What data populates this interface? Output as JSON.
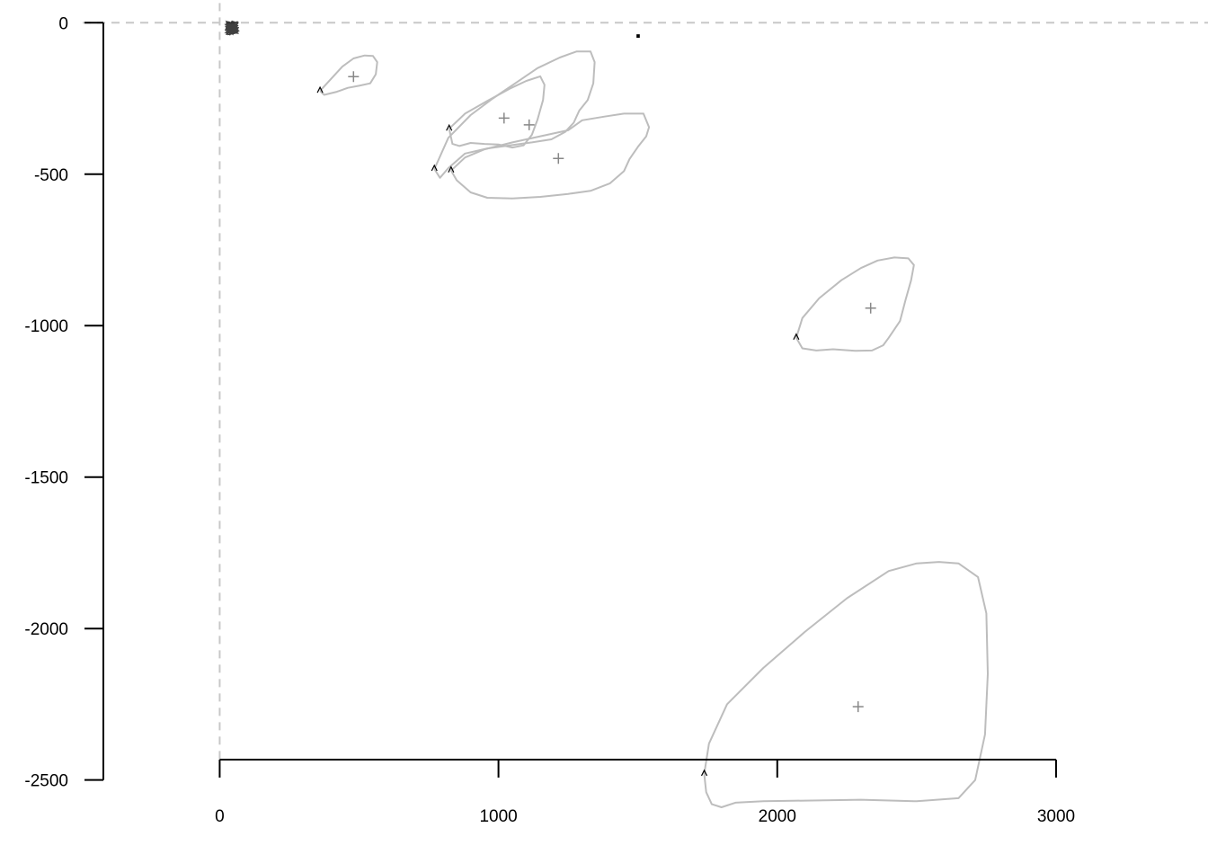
{
  "chart_data": {
    "type": "line",
    "title": ".",
    "xlabel": "",
    "ylabel": "",
    "xlim": [
      -788,
      3545
    ],
    "ylim": [
      -2774,
      75
    ],
    "x_ticks": [
      0,
      1000,
      2000,
      3000
    ],
    "x_tick_labels": [
      "0",
      "1000",
      "2000",
      "3000"
    ],
    "y_ticks": [
      0,
      -500,
      -1000,
      -1500,
      -2000,
      -2500
    ],
    "y_tick_labels": [
      "0",
      "-500",
      "-1000",
      "-1500",
      "-2000",
      "-2500"
    ],
    "reference_lines": {
      "x": 0,
      "y": 0,
      "style": "dashed"
    },
    "grid": false,
    "colors": {
      "trajectory": "#bdbdbd",
      "marker": "#888888",
      "start_marker": "#000000",
      "origin_cluster": "#000000",
      "axis": "#000000",
      "reference": "#c8c8c8"
    },
    "origin_cluster": {
      "x": [
        20,
        70
      ],
      "y": [
        -40,
        5
      ]
    },
    "series": [
      {
        "start": [
          360,
          -225
        ],
        "center": [
          480,
          -178
        ],
        "x": [
          360,
          400,
          440,
          480,
          520,
          550,
          565,
          560,
          540,
          500,
          460,
          420,
          375,
          360
        ],
        "y": [
          -225,
          -185,
          -145,
          -118,
          -108,
          -110,
          -130,
          -170,
          -200,
          -208,
          -215,
          -228,
          -238,
          -225
        ]
      },
      {
        "start": [
          823,
          -350
        ],
        "center": [
          1020,
          -315
        ],
        "x": [
          823,
          880,
          960,
          1040,
          1100,
          1150,
          1165,
          1160,
          1140,
          1120,
          1090,
          1050,
          1000,
          950,
          900,
          860,
          835,
          823
        ],
        "y": [
          -350,
          -300,
          -258,
          -218,
          -192,
          -177,
          -205,
          -255,
          -320,
          -370,
          -405,
          -412,
          -402,
          -400,
          -397,
          -407,
          -400,
          -350
        ]
      },
      {
        "start": [
          770,
          -483
        ],
        "center": [
          1110,
          -337
        ],
        "x": [
          770,
          820,
          900,
          980,
          1060,
          1140,
          1220,
          1280,
          1330,
          1345,
          1340,
          1320,
          1290,
          1270,
          1240,
          1190,
          1120,
          1040,
          960,
          880,
          820,
          790,
          770
        ],
        "y": [
          -483,
          -380,
          -305,
          -250,
          -200,
          -150,
          -115,
          -95,
          -95,
          -130,
          -200,
          -255,
          -290,
          -330,
          -360,
          -385,
          -395,
          -405,
          -415,
          -432,
          -480,
          -512,
          -483
        ]
      },
      {
        "start": [
          830,
          -488
        ],
        "center": [
          1215,
          -448
        ],
        "x": [
          830,
          880,
          950,
          1050,
          1150,
          1250,
          1300,
          1380,
          1450,
          1520,
          1540,
          1530,
          1500,
          1470,
          1450,
          1400,
          1330,
          1250,
          1150,
          1050,
          960,
          900,
          850,
          830
        ],
        "y": [
          -488,
          -445,
          -418,
          -395,
          -375,
          -355,
          -322,
          -310,
          -300,
          -300,
          -345,
          -375,
          -410,
          -450,
          -490,
          -530,
          -555,
          -565,
          -575,
          -580,
          -578,
          -560,
          -520,
          -488
        ]
      },
      {
        "start": [
          2068,
          -1040
        ],
        "center": [
          2335,
          -942
        ],
        "x": [
          2068,
          2090,
          2150,
          2230,
          2300,
          2360,
          2420,
          2470,
          2490,
          2480,
          2460,
          2440,
          2400,
          2380,
          2340,
          2280,
          2200,
          2140,
          2090,
          2068
        ],
        "y": [
          -1040,
          -975,
          -910,
          -850,
          -810,
          -785,
          -775,
          -778,
          -800,
          -850,
          -915,
          -985,
          -1040,
          -1065,
          -1082,
          -1083,
          -1078,
          -1082,
          -1075,
          -1040
        ]
      },
      {
        "start": [
          1738,
          -2480
        ],
        "center": [
          2290,
          -2258
        ],
        "x": [
          1738,
          1755,
          1820,
          1950,
          2100,
          2250,
          2400,
          2500,
          2580,
          2650,
          2720,
          2750,
          2755,
          2745,
          2710,
          2650,
          2500,
          2300,
          2100,
          1950,
          1850,
          1800,
          1765,
          1745,
          1738
        ],
        "y": [
          -2480,
          -2380,
          -2250,
          -2130,
          -2010,
          -1900,
          -1810,
          -1785,
          -1780,
          -1785,
          -1830,
          -1950,
          -2150,
          -2350,
          -2500,
          -2560,
          -2570,
          -2565,
          -2568,
          -2570,
          -2575,
          -2590,
          -2580,
          -2540,
          -2480
        ]
      }
    ]
  }
}
